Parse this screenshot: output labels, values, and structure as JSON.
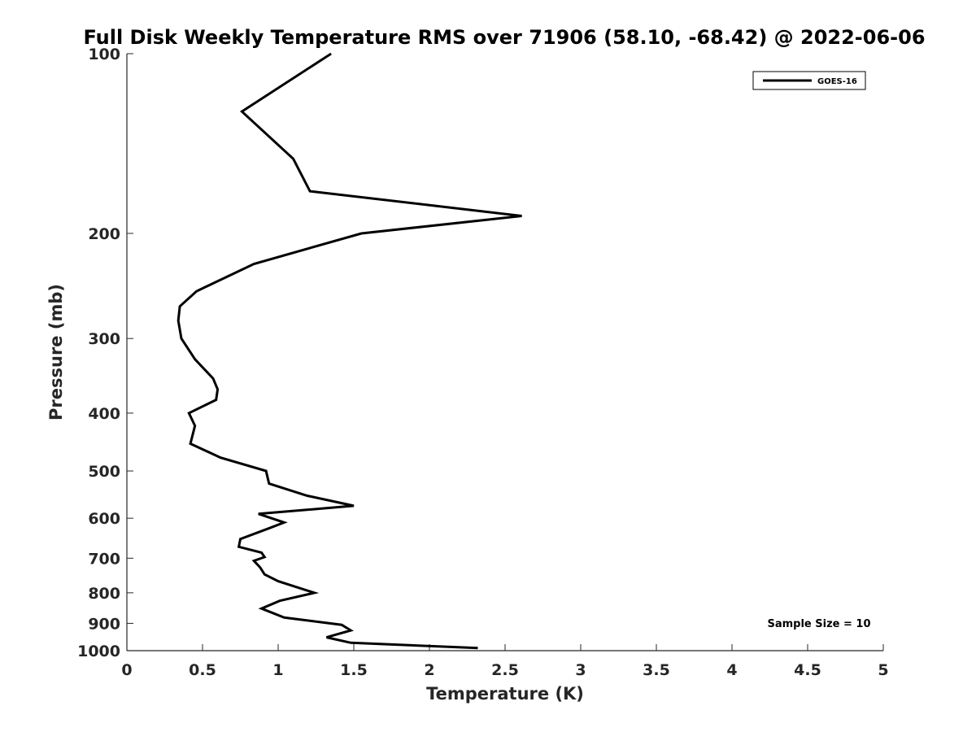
{
  "chart_data": {
    "type": "line",
    "title": "Full Disk Weekly Temperature RMS over 71906 (58.10, -68.42) @ 2022-06-06",
    "xlabel": "Temperature (K)",
    "ylabel": "Pressure (mb)",
    "xlim": [
      0,
      5
    ],
    "ylim": [
      100,
      1000
    ],
    "yscale": "log",
    "y_reversed": true,
    "xticks": [
      "0",
      "0.5",
      "1",
      "1.5",
      "2",
      "2.5",
      "3",
      "3.5",
      "4",
      "4.5",
      "5"
    ],
    "yticks": [
      "100",
      "200",
      "300",
      "400",
      "500",
      "600",
      "700",
      "800",
      "900",
      "1000"
    ],
    "grid": false,
    "legend_position": "top-right",
    "annotation": "Sample Size = 10",
    "series": [
      {
        "name": "GOES-16",
        "color": "#000000",
        "points": [
          [
            1.35,
            100
          ],
          [
            0.76,
            125
          ],
          [
            1.1,
            150
          ],
          [
            1.21,
            170
          ],
          [
            2.61,
            187
          ],
          [
            1.55,
            200
          ],
          [
            0.84,
            225
          ],
          [
            0.46,
            250
          ],
          [
            0.35,
            265
          ],
          [
            0.34,
            280
          ],
          [
            0.36,
            300
          ],
          [
            0.45,
            325
          ],
          [
            0.57,
            350
          ],
          [
            0.6,
            365
          ],
          [
            0.59,
            380
          ],
          [
            0.41,
            400
          ],
          [
            0.45,
            420
          ],
          [
            0.42,
            450
          ],
          [
            0.62,
            475
          ],
          [
            0.92,
            500
          ],
          [
            0.94,
            525
          ],
          [
            1.19,
            550
          ],
          [
            1.5,
            572
          ],
          [
            0.87,
            590
          ],
          [
            1.04,
            610
          ],
          [
            0.93,
            625
          ],
          [
            0.75,
            650
          ],
          [
            0.74,
            670
          ],
          [
            0.89,
            685
          ],
          [
            0.91,
            697
          ],
          [
            0.84,
            707
          ],
          [
            0.88,
            725
          ],
          [
            0.91,
            745
          ],
          [
            1.0,
            765
          ],
          [
            1.24,
            800
          ],
          [
            1.01,
            825
          ],
          [
            0.89,
            850
          ],
          [
            1.04,
            880
          ],
          [
            1.42,
            905
          ],
          [
            1.48,
            925
          ],
          [
            1.32,
            950
          ],
          [
            1.48,
            970
          ],
          [
            2.32,
            990
          ]
        ]
      }
    ]
  }
}
